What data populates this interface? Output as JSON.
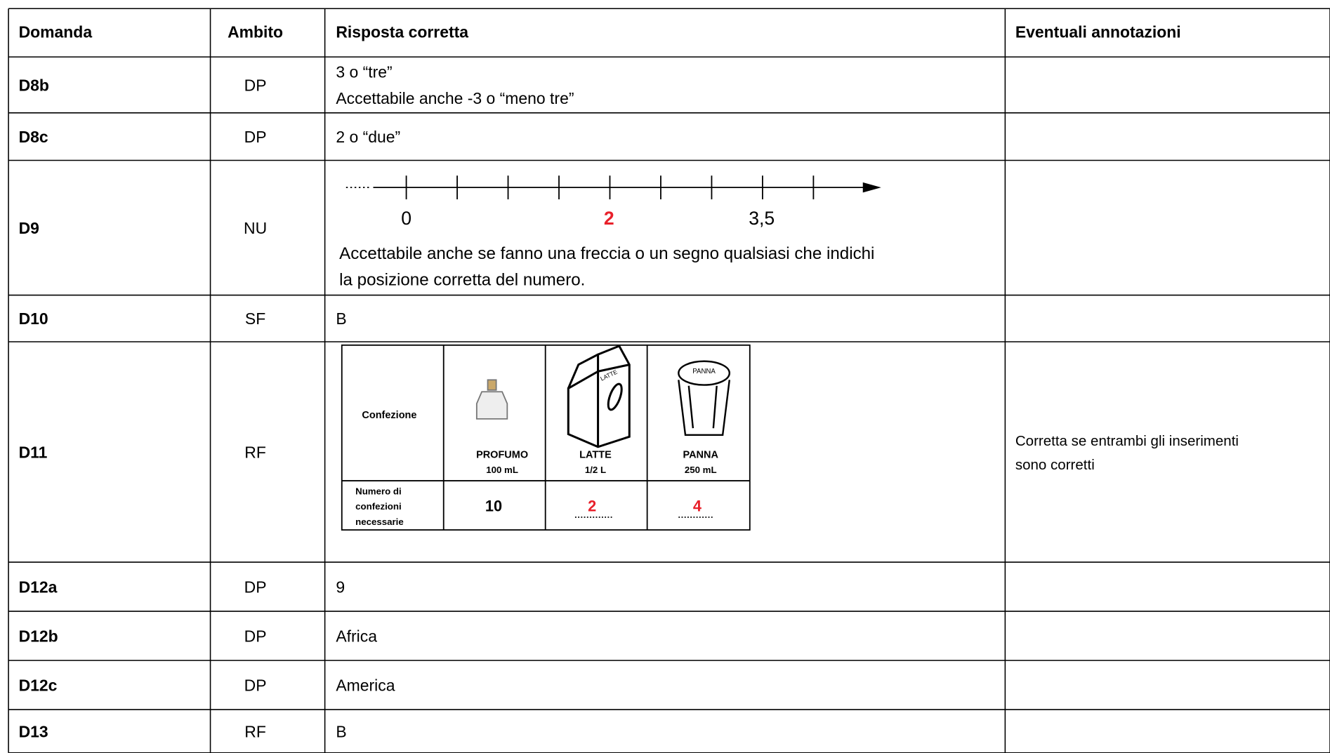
{
  "table": {
    "header": [
      "Domanda",
      "Ambito",
      "Risposta corretta",
      "Eventuali annotazioni"
    ],
    "rows": [
      {
        "domanda": "D8b",
        "ambito": "DP",
        "risposta": [
          "3 o “tre”",
          "Accettabile anche  -3 o “meno tre”"
        ]
      },
      {
        "domanda": "D8c",
        "ambito": "DP",
        "risposta": [
          "2 o “due”"
        ]
      },
      {
        "domanda": "D9",
        "ambito": "NU",
        "number_line": {
          "labels": [
            "0",
            "2",
            "3,5"
          ]
        },
        "risposta": [
          "Accettabile anche se fanno una freccia o un segno qualsiasi che indichi",
          "la posizione corretta del numero."
        ]
      },
      {
        "domanda": "D10",
        "ambito": "SF",
        "risposta": [
          "B"
        ]
      },
      {
        "domanda": "D11",
        "ambito": "RF",
        "inner_table": {
          "row_label": "Confezione",
          "cup_label": "PANNA",
          "carton_label": "LATTE",
          "items": [
            {
              "name": "PROFUMO",
              "size": "100 mL",
              "count": "10"
            },
            {
              "name": "LATTE",
              "size": "1/2 L",
              "count": "2"
            },
            {
              "name": "PANNA",
              "size": "250 mL",
              "count": "4"
            }
          ],
          "count_label": [
            "Numero di",
            "confezioni",
            "necessarie"
          ]
        },
        "annotazioni": [
          "Corretta se entrambi gli inserimenti",
          "sono corretti"
        ]
      },
      {
        "domanda": "D12a",
        "ambito": "DP",
        "risposta": [
          "9"
        ]
      },
      {
        "domanda": "D12b",
        "ambito": "DP",
        "risposta": [
          "Africa"
        ]
      },
      {
        "domanda": "D12c",
        "ambito": "DP",
        "risposta": [
          "America"
        ]
      },
      {
        "domanda": "D13",
        "ambito": "RF",
        "risposta": [
          "B"
        ]
      }
    ]
  }
}
